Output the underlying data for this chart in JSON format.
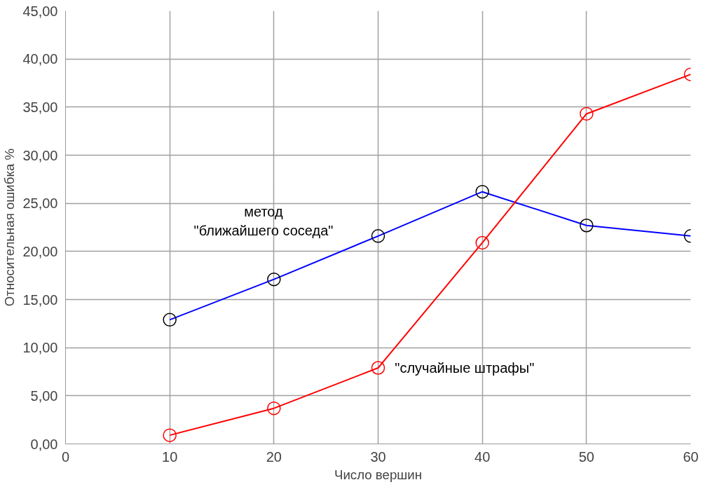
{
  "chart_data": {
    "type": "line",
    "xlabel": "Число вершин",
    "ylabel": "Относительная ошибка %",
    "x": [
      10,
      20,
      30,
      40,
      50,
      60
    ],
    "series": [
      {
        "name": "метод\n\"ближайшего соседа\"",
        "color": "#0000ff",
        "colors": [
          "#000000",
          "#000000",
          "#000000",
          "#000000",
          "#000000",
          "#000000"
        ],
        "values": [
          12.9,
          17.1,
          21.6,
          26.2,
          22.7,
          21.6
        ]
      },
      {
        "name": "\"случайные штрафы\"",
        "color": "#ff0000",
        "colors": [
          "#ff0000",
          "#ff0000",
          "#ff0000",
          "#ff0000",
          "#ff0000",
          "#ff0000"
        ],
        "values": [
          0.9,
          3.7,
          7.9,
          20.9,
          34.3,
          38.4
        ]
      }
    ],
    "xlim": [
      0,
      60
    ],
    "xticks": [
      0,
      10,
      20,
      30,
      40,
      50,
      60
    ],
    "ylim": [
      0,
      45
    ],
    "yticks": [
      {
        "value": 0,
        "label": "0,00"
      },
      {
        "value": 5,
        "label": "5,00"
      },
      {
        "value": 10,
        "label": "10,00"
      },
      {
        "value": 15,
        "label": "15,00"
      },
      {
        "value": 20,
        "label": "20,00"
      },
      {
        "value": 25,
        "label": "25,00"
      },
      {
        "value": 30,
        "label": "30,00"
      },
      {
        "value": 35,
        "label": "35,00"
      },
      {
        "value": 40,
        "label": "40,00"
      },
      {
        "value": 45,
        "label": "45,00"
      }
    ],
    "grid": true,
    "marker": "circle",
    "line_style": "solid"
  }
}
